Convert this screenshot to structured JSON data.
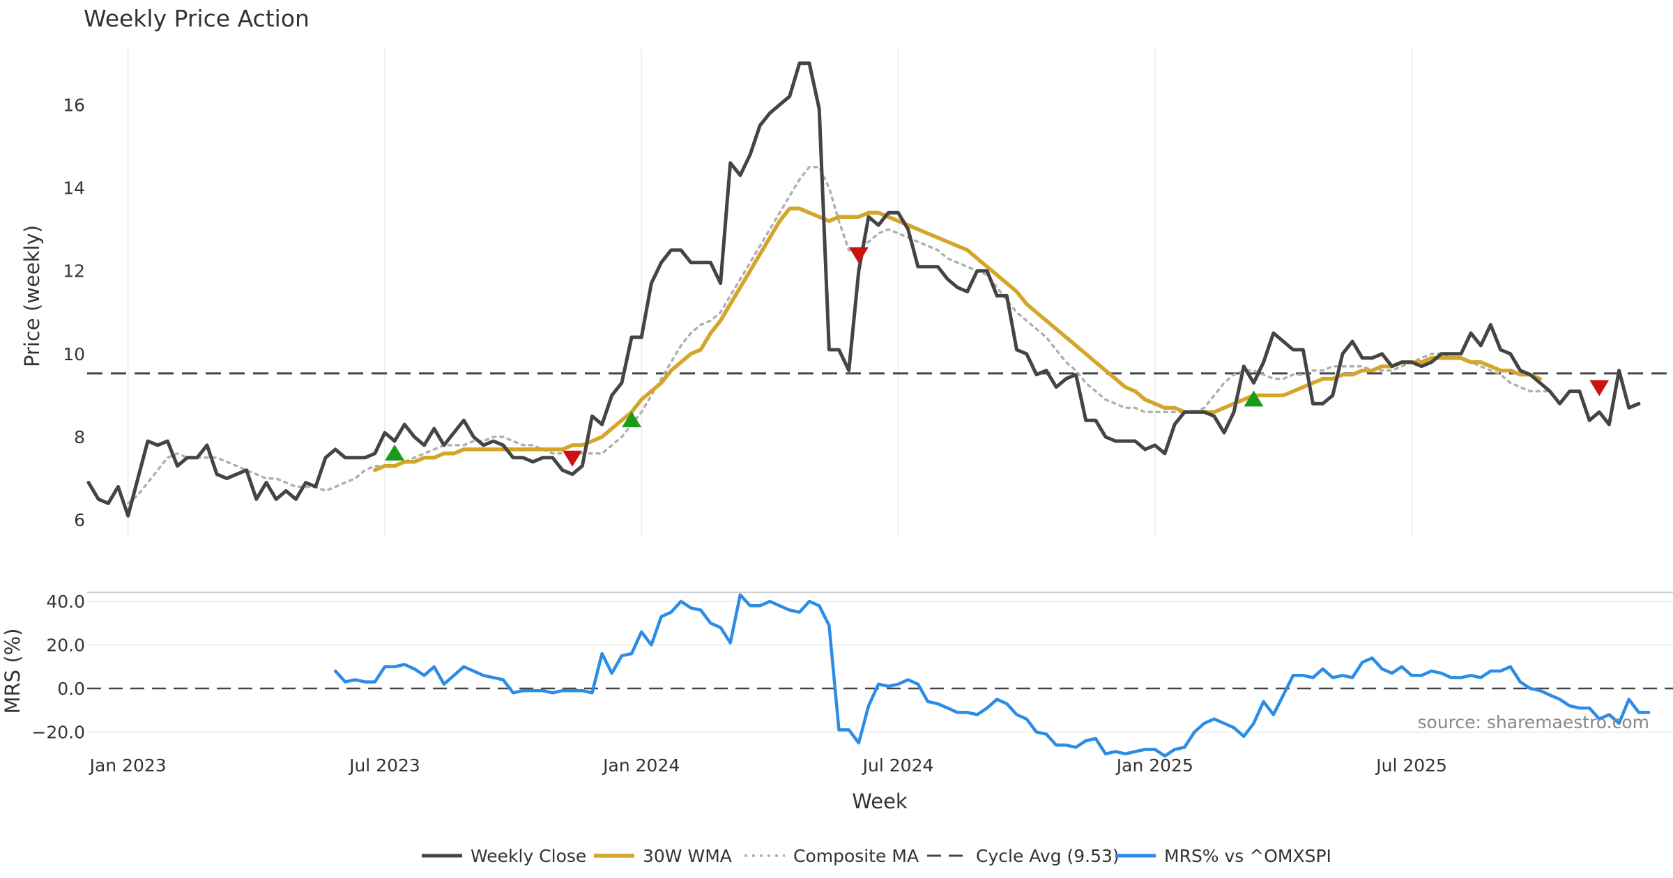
{
  "chart_data": {
    "type": "line",
    "title": "Weekly Price Action",
    "xlabel": "Week",
    "x_ticks": [
      "Jan 2023",
      "Jul 2023",
      "Jan 2024",
      "Jul 2024",
      "Jan 2025",
      "Jul 2025"
    ],
    "x_tick_weeks": [
      4,
      30,
      56,
      82,
      108,
      134
    ],
    "price_panel": {
      "ylabel": "Price (weekly)",
      "ylim": [
        5.6,
        17.6
      ],
      "y_ticks": [
        6,
        8,
        10,
        12,
        14,
        16
      ],
      "cycle_avg": 9.53
    },
    "mrs_panel": {
      "ylabel": "MRS (%)",
      "ylim": [
        -32,
        48
      ],
      "y_ticks": [
        40,
        20,
        0,
        -20
      ],
      "y_tick_labels": [
        "40.0",
        "20.0",
        "0.0",
        "−20.0"
      ]
    },
    "series": [
      {
        "name": "Weekly Close",
        "color": "#444444",
        "style": "solid",
        "panel": "price",
        "start_week": 0,
        "values": [
          6.9,
          6.5,
          6.4,
          6.8,
          6.1,
          7.0,
          7.9,
          7.8,
          7.9,
          7.3,
          7.5,
          7.5,
          7.8,
          7.1,
          7.0,
          7.1,
          7.2,
          6.5,
          6.9,
          6.5,
          6.7,
          6.5,
          6.9,
          6.8,
          7.5,
          7.7,
          7.5,
          7.5,
          7.5,
          7.6,
          8.1,
          7.9,
          8.3,
          8.0,
          7.8,
          8.2,
          7.8,
          8.1,
          8.4,
          8.0,
          7.8,
          7.9,
          7.8,
          7.5,
          7.5,
          7.4,
          7.5,
          7.5,
          7.2,
          7.1,
          7.3,
          8.5,
          8.3,
          9.0,
          9.3,
          10.4,
          10.4,
          11.7,
          12.2,
          12.5,
          12.5,
          12.2,
          12.2,
          12.2,
          11.7,
          14.6,
          14.3,
          14.8,
          15.5,
          15.8,
          16.0,
          16.2,
          17.0,
          17.0,
          15.9,
          10.1,
          10.1,
          9.6,
          12.0,
          13.3,
          13.1,
          13.4,
          13.4,
          13.0,
          12.1,
          12.1,
          12.1,
          11.8,
          11.6,
          11.5,
          12.0,
          12.0,
          11.4,
          11.4,
          10.1,
          10.0,
          9.5,
          9.6,
          9.2,
          9.4,
          9.5,
          8.4,
          8.4,
          8.0,
          7.9,
          7.9,
          7.9,
          7.7,
          7.8,
          7.6,
          8.3,
          8.6,
          8.6,
          8.6,
          8.5,
          8.1,
          8.6,
          9.7,
          9.3,
          9.8,
          10.5,
          10.3,
          10.1,
          10.1,
          8.8,
          8.8,
          9.0,
          10.0,
          10.3,
          9.9,
          9.9,
          10.0,
          9.7,
          9.8,
          9.8,
          9.7,
          9.8,
          10.0,
          10.0,
          10.0,
          10.5,
          10.2,
          10.7,
          10.1,
          10.0,
          9.6,
          9.5,
          9.3,
          9.1,
          8.8,
          9.1,
          9.1,
          8.4,
          8.6,
          8.3,
          9.6,
          8.7,
          8.8
        ]
      },
      {
        "name": "30W WMA",
        "color": "#D4A52A",
        "style": "solid",
        "panel": "price",
        "start_week": 29,
        "values": [
          7.2,
          7.3,
          7.3,
          7.4,
          7.4,
          7.5,
          7.5,
          7.6,
          7.6,
          7.7,
          7.7,
          7.7,
          7.7,
          7.7,
          7.7,
          7.7,
          7.7,
          7.7,
          7.7,
          7.7,
          7.8,
          7.8,
          7.9,
          8.0,
          8.2,
          8.4,
          8.6,
          8.9,
          9.1,
          9.3,
          9.6,
          9.8,
          10.0,
          10.1,
          10.5,
          10.8,
          11.2,
          11.6,
          12.0,
          12.4,
          12.8,
          13.2,
          13.5,
          13.5,
          13.4,
          13.3,
          13.2,
          13.3,
          13.3,
          13.3,
          13.4,
          13.4,
          13.3,
          13.2,
          13.1,
          13.0,
          12.9,
          12.8,
          12.7,
          12.6,
          12.5,
          12.3,
          12.1,
          11.9,
          11.7,
          11.5,
          11.2,
          11.0,
          10.8,
          10.6,
          10.4,
          10.2,
          10.0,
          9.8,
          9.6,
          9.4,
          9.2,
          9.1,
          8.9,
          8.8,
          8.7,
          8.7,
          8.6,
          8.6,
          8.6,
          8.6,
          8.7,
          8.8,
          8.9,
          9.0,
          9.0,
          9.0,
          9.0,
          9.1,
          9.2,
          9.3,
          9.4,
          9.4,
          9.5,
          9.5,
          9.6,
          9.6,
          9.7,
          9.7,
          9.8,
          9.8,
          9.8,
          9.9,
          9.9,
          9.9,
          9.9,
          9.8,
          9.8,
          9.7,
          9.6,
          9.6,
          9.5,
          9.5,
          9.4
        ]
      },
      {
        "name": "Composite MA",
        "color": "#B0B0B0",
        "style": "dotted",
        "panel": "price",
        "start_week": 4,
        "values": [
          6.4,
          6.6,
          6.9,
          7.2,
          7.5,
          7.6,
          7.5,
          7.5,
          7.5,
          7.5,
          7.4,
          7.3,
          7.2,
          7.1,
          7.0,
          7.0,
          6.9,
          6.8,
          6.8,
          6.8,
          6.7,
          6.8,
          6.9,
          7.0,
          7.2,
          7.3,
          7.3,
          7.3,
          7.4,
          7.5,
          7.6,
          7.7,
          7.8,
          7.8,
          7.8,
          7.9,
          7.9,
          8.0,
          8.0,
          7.9,
          7.8,
          7.8,
          7.7,
          7.6,
          7.6,
          7.6,
          7.6,
          7.6,
          7.6,
          7.8,
          8.0,
          8.3,
          8.6,
          9.0,
          9.4,
          9.8,
          10.2,
          10.5,
          10.7,
          10.8,
          11.0,
          11.4,
          11.8,
          12.2,
          12.6,
          13.0,
          13.4,
          13.8,
          14.2,
          14.5,
          14.5,
          14.0,
          13.2,
          12.5,
          12.5,
          12.7,
          12.9,
          13.0,
          12.9,
          12.8,
          12.7,
          12.6,
          12.5,
          12.3,
          12.2,
          12.1,
          12.0,
          11.9,
          11.6,
          11.3,
          11.0,
          10.8,
          10.6,
          10.4,
          10.1,
          9.8,
          9.6,
          9.3,
          9.1,
          8.9,
          8.8,
          8.7,
          8.7,
          8.6,
          8.6,
          8.6,
          8.6,
          8.6,
          8.6,
          8.7,
          9.0,
          9.3,
          9.5,
          9.6,
          9.6,
          9.5,
          9.4,
          9.4,
          9.5,
          9.5,
          9.6,
          9.6,
          9.7,
          9.7,
          9.7,
          9.7,
          9.6,
          9.6,
          9.6,
          9.7,
          9.8,
          9.9,
          10.0,
          10.0,
          9.9,
          9.9,
          9.8,
          9.7,
          9.6,
          9.5,
          9.3,
          9.2,
          9.1,
          9.1,
          9.1
        ]
      },
      {
        "name": "MRS% vs ^OMXSPI",
        "color": "#2B8CE6",
        "style": "solid",
        "panel": "mrs",
        "start_week": 25,
        "values": [
          8,
          3,
          4,
          3,
          3,
          10,
          10,
          11,
          9,
          6,
          10,
          2,
          6,
          10,
          8,
          6,
          5,
          4,
          -2,
          -1,
          -1,
          -1,
          -2,
          -1,
          -1,
          -1,
          -2,
          16,
          7,
          15,
          16,
          26,
          20,
          33,
          35,
          40,
          37,
          36,
          30,
          28,
          21,
          43,
          38,
          38,
          40,
          38,
          36,
          35,
          40,
          38,
          29,
          -19,
          -19,
          -25,
          -8,
          2,
          1,
          2,
          4,
          2,
          -6,
          -7,
          -9,
          -11,
          -11,
          -12,
          -9,
          -5,
          -7,
          -12,
          -14,
          -20,
          -21,
          -26,
          -26,
          -27,
          -24,
          -23,
          -30,
          -29,
          -30,
          -29,
          -28,
          -28,
          -31,
          -28,
          -27,
          -20,
          -16,
          -14,
          -16,
          -18,
          -22,
          -16,
          -6,
          -12,
          -3,
          6,
          6,
          5,
          9,
          5,
          6,
          5,
          12,
          14,
          9,
          7,
          10,
          6,
          6,
          8,
          7,
          5,
          5,
          6,
          5,
          8,
          8,
          10,
          3,
          0,
          -1,
          -3,
          -5,
          -8,
          -9,
          -9,
          -14,
          -12,
          -16,
          -5,
          -11,
          -11
        ]
      },
      {
        "name": "Cycle Avg (9.53)",
        "color": "#444444",
        "style": "dashed",
        "panel": "price",
        "value": 9.53
      }
    ],
    "signals": {
      "buy": [
        {
          "week": 31,
          "price": 7.6
        },
        {
          "week": 55,
          "price": 8.4
        },
        {
          "week": 118,
          "price": 8.9
        }
      ],
      "sell": [
        {
          "week": 49,
          "price": 7.5
        },
        {
          "week": 78,
          "price": 12.4
        },
        {
          "week": 153,
          "price": 9.2
        }
      ]
    },
    "legend": {
      "position": "bottom",
      "entries": [
        "Weekly Close",
        "30W WMA",
        "Composite MA",
        "Cycle Avg (9.53)",
        "MRS% vs ^OMXSPI"
      ]
    },
    "source_note": "source: sharemaestro.com"
  }
}
